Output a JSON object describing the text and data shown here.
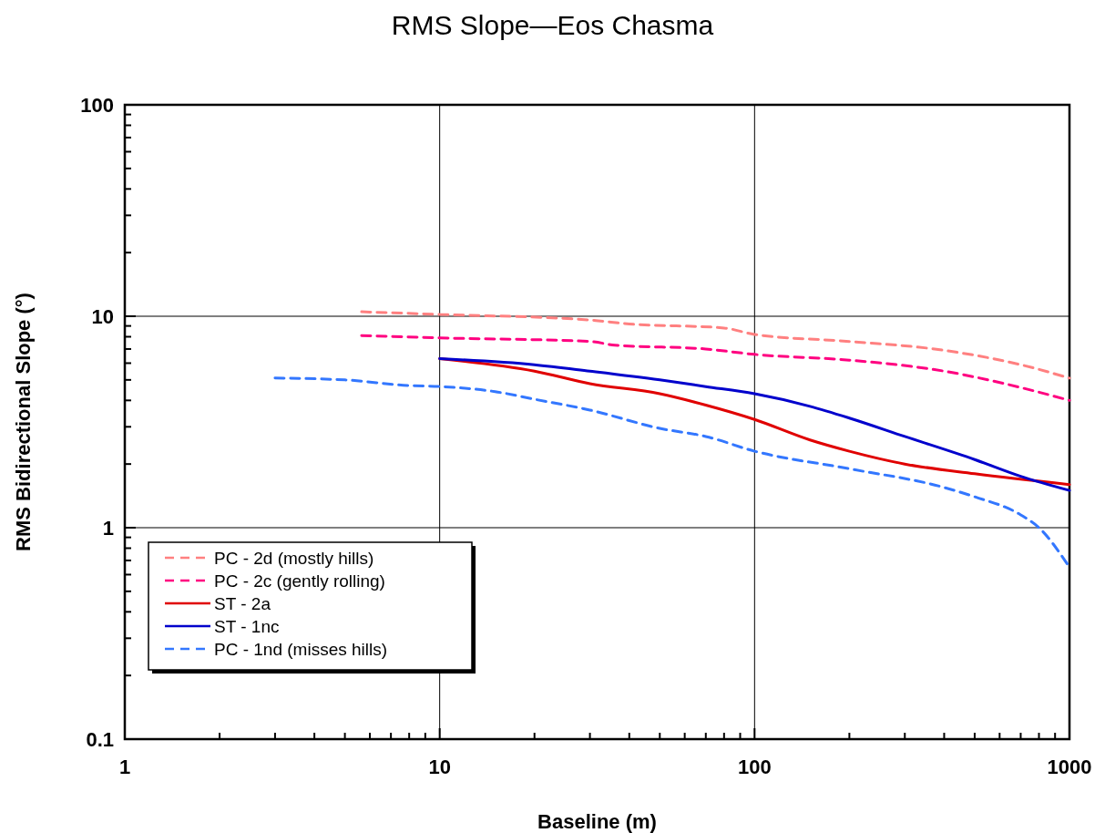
{
  "chart_data": {
    "type": "line",
    "title": "RMS Slope—Eos Chasma",
    "xlabel": "Baseline (m)",
    "ylabel": "RMS Bidirectional Slope (°)",
    "log": "xy",
    "grid": true,
    "legend": "bottom left",
    "xlim": [
      1,
      1000
    ],
    "ylim": [
      0.1,
      100
    ],
    "xticks": [
      1,
      {
        "value": 2,
        "label": null
      },
      {
        "value": 3,
        "label": null
      },
      {
        "value": 4,
        "label": null
      },
      {
        "value": 5,
        "label": null
      },
      {
        "value": 6,
        "label": null
      },
      {
        "value": 7,
        "label": null
      },
      {
        "value": 8,
        "label": null
      },
      {
        "value": 9,
        "label": null
      },
      10,
      {
        "value": 20,
        "label": null
      },
      {
        "value": 30,
        "label": null
      },
      {
        "value": 40,
        "label": null
      },
      {
        "value": 50,
        "label": null
      },
      {
        "value": 60,
        "label": null
      },
      {
        "value": 70,
        "label": null
      },
      {
        "value": 80,
        "label": null
      },
      {
        "value": 90,
        "label": null
      },
      100,
      {
        "value": 200,
        "label": null
      },
      {
        "value": 300,
        "label": null
      },
      {
        "value": 400,
        "label": null
      },
      {
        "value": 500,
        "label": null
      },
      {
        "value": 600,
        "label": null
      },
      {
        "value": 700,
        "label": null
      },
      {
        "value": 800,
        "label": null
      },
      {
        "value": 900,
        "label": null
      },
      1000
    ],
    "yticks": [
      0.1,
      {
        "value": 0.2,
        "label": null
      },
      {
        "value": 0.3,
        "label": null
      },
      {
        "value": 0.4,
        "label": null
      },
      {
        "value": 0.5,
        "label": null
      },
      {
        "value": 0.6,
        "label": null
      },
      {
        "value": 0.7,
        "label": null
      },
      {
        "value": 0.8,
        "label": null
      },
      {
        "value": 0.9,
        "label": null
      },
      1,
      {
        "value": 2,
        "label": null
      },
      {
        "value": 3,
        "label": null
      },
      {
        "value": 4,
        "label": null
      },
      {
        "value": 5,
        "label": null
      },
      {
        "value": 6,
        "label": null
      },
      {
        "value": 7,
        "label": null
      },
      {
        "value": 8,
        "label": null
      },
      {
        "value": 9,
        "label": null
      },
      10,
      {
        "value": 20,
        "label": null
      },
      {
        "value": 30,
        "label": null
      },
      {
        "value": 40,
        "label": null
      },
      {
        "value": 50,
        "label": null
      },
      {
        "value": 60,
        "label": null
      },
      {
        "value": 70,
        "label": null
      },
      {
        "value": 80,
        "label": null
      },
      {
        "value": 90,
        "label": null
      },
      100
    ],
    "series": [
      {
        "name": "PC - 2d (mostly hills)",
        "color": "#ff8080",
        "line_style": "dashed",
        "x": [
          5.65,
          10,
          30,
          40,
          80,
          100,
          200,
          400,
          700,
          1000
        ],
        "values": [
          10.5,
          10.2,
          9.6,
          9.2,
          8.8,
          8.2,
          7.6,
          6.9,
          5.9,
          5.1
        ]
      },
      {
        "name": "PC - 2c (gently rolling)",
        "color": "#ff0080",
        "line_style": "dashed",
        "x": [
          5.65,
          10,
          30,
          36,
          70,
          100,
          200,
          400,
          700,
          1000
        ],
        "values": [
          8.1,
          7.9,
          7.6,
          7.3,
          7.0,
          6.6,
          6.2,
          5.5,
          4.6,
          4.0
        ]
      },
      {
        "name": "ST - 2a",
        "color": "#e00000",
        "line_style": "solid",
        "x": [
          10,
          20,
          30,
          50,
          70,
          100,
          150,
          200,
          300,
          500,
          1000
        ],
        "values": [
          6.3,
          5.5,
          4.8,
          4.3,
          3.8,
          3.25,
          2.6,
          2.3,
          2.0,
          1.8,
          1.6
        ]
      },
      {
        "name": "ST - 1nc",
        "color": "#0000cc",
        "line_style": "solid",
        "x": [
          10,
          20,
          30,
          50,
          70,
          100,
          150,
          200,
          300,
          500,
          700,
          1000
        ],
        "values": [
          6.3,
          5.9,
          5.5,
          5.0,
          4.65,
          4.3,
          3.75,
          3.3,
          2.7,
          2.1,
          1.75,
          1.5
        ]
      },
      {
        "name": "PC - 1nd (misses hills)",
        "color": "#3377ff",
        "line_style": "dashed",
        "x": [
          3,
          5,
          8,
          10,
          15,
          20,
          30,
          50,
          70,
          100,
          200,
          400,
          500,
          700,
          800,
          1000
        ],
        "values": [
          5.1,
          5.0,
          4.7,
          4.65,
          4.4,
          4.05,
          3.6,
          2.95,
          2.7,
          2.3,
          1.9,
          1.55,
          1.4,
          1.15,
          1.0,
          0.65
        ]
      }
    ]
  }
}
